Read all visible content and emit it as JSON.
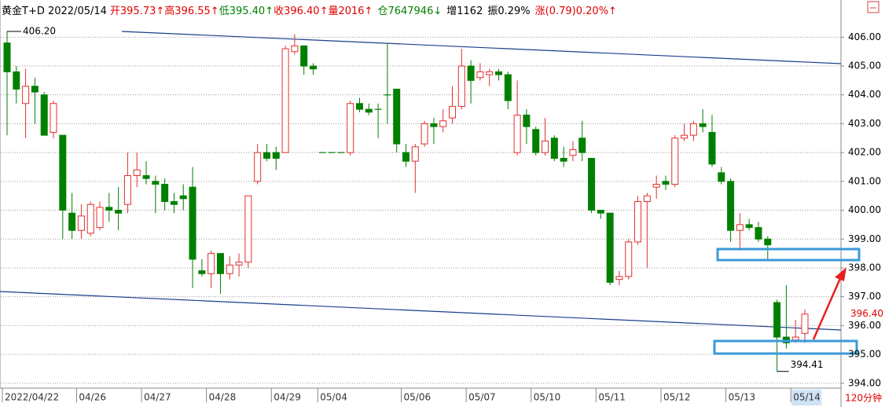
{
  "chart_data": {
    "type": "candlestick",
    "header": [
      {
        "text": "黄金T+D 2022/05/14",
        "color": "#000000"
      },
      {
        "text": "开395.73↑",
        "color": "#e00000"
      },
      {
        "text": "高396.55↑",
        "color": "#e00000"
      },
      {
        "text": "低395.40↑",
        "color": "#008000"
      },
      {
        "text": "收396.40↑",
        "color": "#e00000"
      },
      {
        "text": "量2016↑",
        "color": "#e00000"
      },
      {
        "text": "仓7647946↓",
        "color": "#008000"
      },
      {
        "text": "增1162",
        "color": "#000000"
      },
      {
        "text": "振0.29%",
        "color": "#000000"
      },
      {
        "text": "涨(0.79)0.20%↑",
        "color": "#e00000"
      }
    ],
    "period": "120分钟",
    "up_color": "#e03030",
    "down_color": "#008000",
    "ylim": [
      393.83,
      407.29
    ],
    "yticks": [
      {
        "value": 394,
        "label": "394.00"
      },
      {
        "value": 395,
        "label": "395.00"
      },
      {
        "value": 396,
        "label": "396.00"
      },
      {
        "value": 397,
        "label": "397.00"
      },
      {
        "value": 398,
        "label": "398.00"
      },
      {
        "value": 399,
        "label": "399.00"
      },
      {
        "value": 400,
        "label": "400.00"
      },
      {
        "value": 401,
        "label": "401.00"
      },
      {
        "value": 402,
        "label": "402.00"
      },
      {
        "value": 403,
        "label": "403.00"
      },
      {
        "value": 404,
        "label": "404.00"
      },
      {
        "value": 405,
        "label": "405.00"
      },
      {
        "value": 406,
        "label": "406.00"
      }
    ],
    "grid": true,
    "high_label": {
      "value": 406.2,
      "label": "406.20"
    },
    "low_label": {
      "value": 394.41,
      "label": "394.41"
    },
    "last_label": {
      "value": 396.4,
      "label": "396.40"
    },
    "categories": [
      "2022/04/22",
      null,
      null,
      null,
      null,
      null,
      null,
      null,
      "04/26",
      null,
      null,
      null,
      null,
      null,
      null,
      "04/27",
      null,
      null,
      null,
      null,
      null,
      null,
      "04/28",
      null,
      null,
      null,
      null,
      null,
      null,
      "04/29",
      null,
      null,
      null,
      null,
      "05/04",
      null,
      null,
      null,
      null,
      null,
      null,
      null,
      null,
      "05/06",
      null,
      null,
      null,
      null,
      null,
      null,
      "05/07",
      null,
      null,
      null,
      null,
      null,
      null,
      "05/10",
      null,
      null,
      null,
      null,
      null,
      null,
      "05/11",
      null,
      null,
      null,
      null,
      null,
      null,
      "05/12",
      null,
      null,
      null,
      null,
      null,
      null,
      "05/13",
      null,
      null,
      null,
      null,
      null,
      null,
      "05/14",
      null
    ],
    "open": [
      405.8,
      404.8,
      403.7,
      404.3,
      404.0,
      402.7,
      402.6,
      399.9,
      399.3,
      399.2,
      399.4,
      400.1,
      400.0,
      400.2,
      401.2,
      401.2,
      401.0,
      400.9,
      400.3,
      400.5,
      400.8,
      397.9,
      397.8,
      398.5,
      397.8,
      398.1,
      398.2,
      401.0,
      402.0,
      402.0,
      402.0,
      405.5,
      405.7,
      405.0,
      402.0,
      402.0,
      402.0,
      402.0,
      403.7,
      403.5,
      403.5,
      404.0,
      404.2,
      402.0,
      401.7,
      402.3,
      403.0,
      402.9,
      403.2,
      403.6,
      405.0,
      404.6,
      404.7,
      404.8,
      404.7,
      402.0,
      403.3,
      402.8,
      402.0,
      402.5,
      401.8,
      401.9,
      402.5,
      401.8,
      400.0,
      399.9,
      397.6,
      397.7,
      398.9,
      400.3,
      400.8,
      401.0,
      400.9,
      402.5,
      402.6,
      403.0,
      402.7,
      401.3,
      401.0,
      399.3,
      399.5,
      399.4,
      399.0,
      396.8,
      395.6,
      395.5,
      395.73
    ],
    "high": [
      406.2,
      405.0,
      404.9,
      404.6,
      404.1,
      403.8,
      402.6,
      400.6,
      400.2,
      400.3,
      400.3,
      400.6,
      400.8,
      402.0,
      402.0,
      401.7,
      401.2,
      401.1,
      400.6,
      400.9,
      401.5,
      398.3,
      398.6,
      398.5,
      398.4,
      398.5,
      400.5,
      402.3,
      402.3,
      402.2,
      405.7,
      406.1,
      405.7,
      405.1,
      402.0,
      402.0,
      402.0,
      403.8,
      403.9,
      403.7,
      403.7,
      405.8,
      404.2,
      402.3,
      402.3,
      403.1,
      403.2,
      403.5,
      404.3,
      405.6,
      405.2,
      405.1,
      404.9,
      404.9,
      404.8,
      404.5,
      403.5,
      402.9,
      403.2,
      402.6,
      402.2,
      402.4,
      403.1,
      401.8,
      400.0,
      399.9,
      397.9,
      399.0,
      400.5,
      400.6,
      401.2,
      401.2,
      402.6,
      403.0,
      403.1,
      403.5,
      403.3,
      401.5,
      401.1,
      399.9,
      399.7,
      399.6,
      399.1,
      396.9,
      397.4,
      396.2,
      396.55
    ],
    "low": [
      402.6,
      403.7,
      402.5,
      403.0,
      402.6,
      402.5,
      399.0,
      399.0,
      399.0,
      399.1,
      399.3,
      399.6,
      399.3,
      399.9,
      400.8,
      400.9,
      399.9,
      400.0,
      399.9,
      400.0,
      397.3,
      397.7,
      397.3,
      397.1,
      397.6,
      397.7,
      398.0,
      400.9,
      401.7,
      401.4,
      402.0,
      405.4,
      404.7,
      404.7,
      402.0,
      402.0,
      402.0,
      401.9,
      403.4,
      403.3,
      402.5,
      403.0,
      402.0,
      401.5,
      400.6,
      402.2,
      402.3,
      402.7,
      403.0,
      403.5,
      403.7,
      404.5,
      404.3,
      404.5,
      403.5,
      401.9,
      402.3,
      401.9,
      401.9,
      401.7,
      401.5,
      401.7,
      401.7,
      399.9,
      399.7,
      397.4,
      397.4,
      397.6,
      398.8,
      398.0,
      400.4,
      400.7,
      400.8,
      402.4,
      402.4,
      402.7,
      401.5,
      400.9,
      398.9,
      398.6,
      399.3,
      398.9,
      398.3,
      394.41,
      395.2,
      395.4,
      395.4
    ],
    "close": [
      404.8,
      404.2,
      404.3,
      404.1,
      402.6,
      403.7,
      400.0,
      399.3,
      399.8,
      400.2,
      400.1,
      400.0,
      399.9,
      401.2,
      401.4,
      401.1,
      400.9,
      400.3,
      400.2,
      400.4,
      398.3,
      397.8,
      398.5,
      397.8,
      398.1,
      398.2,
      400.5,
      402.0,
      401.8,
      401.8,
      405.6,
      405.7,
      405.0,
      404.9,
      402.0,
      402.0,
      402.0,
      403.7,
      403.5,
      403.4,
      403.5,
      404.0,
      402.3,
      401.7,
      402.2,
      403.0,
      402.9,
      403.1,
      403.6,
      405.0,
      404.5,
      404.8,
      404.8,
      404.7,
      403.8,
      403.3,
      402.9,
      402.0,
      402.4,
      401.8,
      401.7,
      402.1,
      402.0,
      400.0,
      399.9,
      397.5,
      397.7,
      398.9,
      400.3,
      400.5,
      400.9,
      400.9,
      402.5,
      402.6,
      403.0,
      402.9,
      401.6,
      401.0,
      399.3,
      399.5,
      399.4,
      399.0,
      398.8,
      395.6,
      395.4,
      395.6,
      396.4
    ]
  }
}
